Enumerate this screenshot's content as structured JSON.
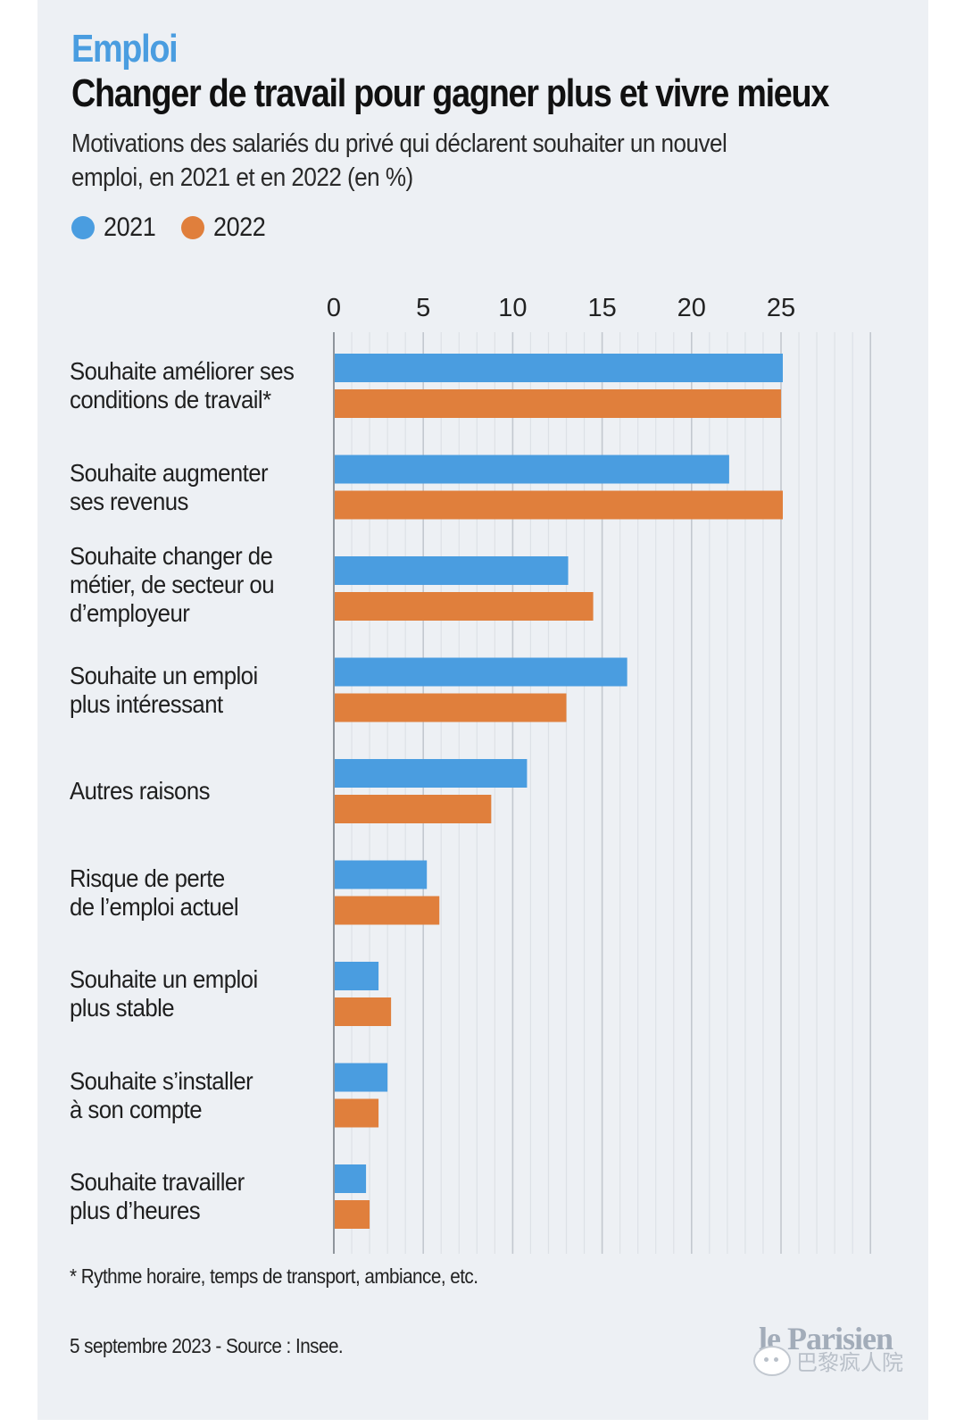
{
  "header": {
    "kicker": "Emploi",
    "title": "Changer de travail pour gagner plus et vivre mieux",
    "subtitle": "Motivations des salariés du privé qui déclarent souhaiter un nouvel emploi, en 2021 et en 2022 (en %)"
  },
  "legend": [
    {
      "label": "2021",
      "color": "#4a9de0"
    },
    {
      "label": "2022",
      "color": "#e07f3c"
    }
  ],
  "chart_data": {
    "type": "bar",
    "orientation": "horizontal",
    "title": "Changer de travail pour gagner plus et vivre mieux",
    "subtitle": "Motivations des salariés du privé qui déclarent souhaiter un nouvel emploi, en 2021 et en 2022 (en %)",
    "xlabel": "",
    "ylabel": "",
    "xlim": [
      0,
      30
    ],
    "xticks": [
      0,
      5,
      10,
      15,
      20,
      25
    ],
    "xtick_labels": [
      "0",
      "5",
      "10",
      "15",
      "20",
      "25"
    ],
    "axis_position": "top",
    "grid": true,
    "minor_grid_step": 1,
    "legend_position": "top-left",
    "categories": [
      "Souhaite améliorer ses conditions de travail*",
      "Souhaite augmenter ses revenus",
      "Souhaite changer de métier, de secteur ou d’employeur",
      "Souhaite un emploi plus intéressant",
      "Autres raisons",
      "Risque de perte de l’emploi actuel",
      "Souhaite un emploi plus stable",
      "Souhaite s’installer à son compte",
      "Souhaite travailler plus d’heures"
    ],
    "category_lines": [
      [
        "Souhaite améliorer ses",
        "conditions de travail*"
      ],
      [
        "Souhaite augmenter",
        "ses revenus"
      ],
      [
        "Souhaite changer de",
        "métier, de secteur ou",
        "d’employeur"
      ],
      [
        "Souhaite un emploi",
        "plus intéressant"
      ],
      [
        "Autres raisons"
      ],
      [
        "Risque de perte",
        "de l’emploi actuel"
      ],
      [
        "Souhaite un emploi",
        "plus stable"
      ],
      [
        "Souhaite s’installer",
        "à son compte"
      ],
      [
        "Souhaite travailler",
        "plus d’heures"
      ]
    ],
    "series": [
      {
        "name": "2021",
        "color": "#4a9de0",
        "values": [
          25.1,
          22.1,
          13.1,
          16.4,
          10.8,
          5.2,
          2.5,
          3.0,
          1.8
        ]
      },
      {
        "name": "2022",
        "color": "#e07f3c",
        "values": [
          25.0,
          25.1,
          14.5,
          13.0,
          8.8,
          5.9,
          3.2,
          2.5,
          2.0
        ]
      }
    ]
  },
  "footer": {
    "footnote": "* Rythme horaire, temps de transport, ambiance, etc.",
    "source": "5 septembre 2023 - Source : Insee.",
    "brand": "le Parisien",
    "watermark": "巴黎疯人院"
  }
}
